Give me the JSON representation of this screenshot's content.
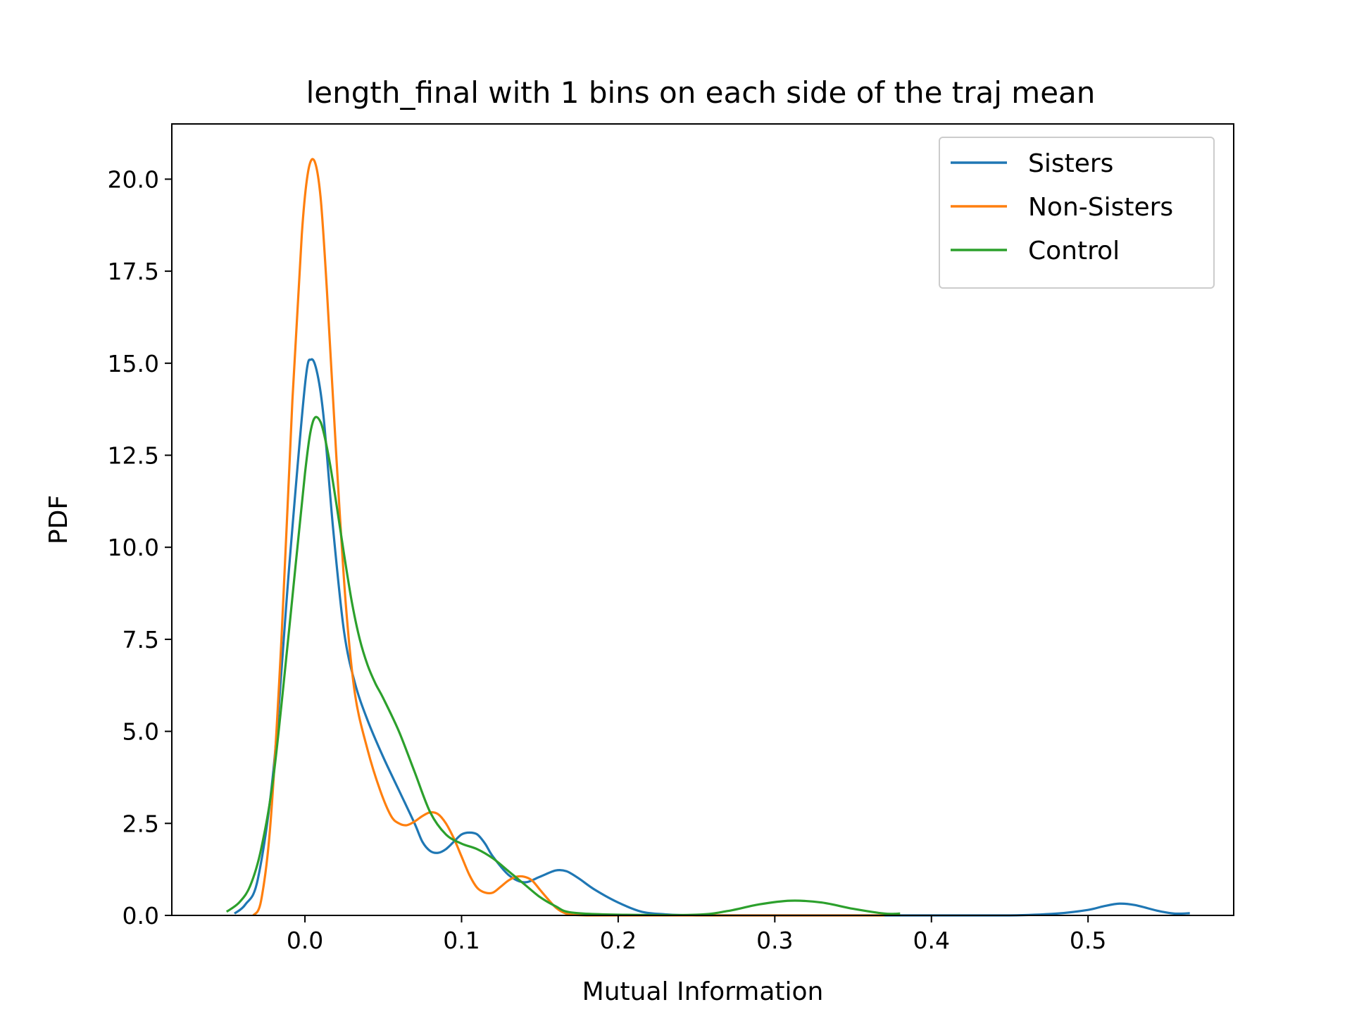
{
  "chart_data": {
    "type": "line",
    "title": "length_final with 1 bins on each side of the traj mean",
    "xlabel": "Mutual Information",
    "ylabel": "PDF",
    "xlim": [
      -0.085,
      0.593
    ],
    "ylim": [
      0,
      21.5
    ],
    "x_ticks": [
      0.0,
      0.1,
      0.2,
      0.3,
      0.4,
      0.5
    ],
    "x_tick_labels": [
      "0.0",
      "0.1",
      "0.2",
      "0.3",
      "0.4",
      "0.5"
    ],
    "y_ticks": [
      0,
      2.5,
      5,
      7.5,
      10,
      12.5,
      15,
      17.5,
      20
    ],
    "y_tick_labels": [
      "0.0",
      "2.5",
      "5.0",
      "7.5",
      "10.0",
      "12.5",
      "15.0",
      "17.5",
      "20.0"
    ],
    "grid": false,
    "legend": "top-right",
    "series": [
      {
        "name": "Sisters",
        "color": "#1f77b4",
        "x": [
          -0.045,
          -0.038,
          -0.03,
          -0.02,
          -0.01,
          0.0,
          0.004,
          0.008,
          0.012,
          0.018,
          0.025,
          0.032,
          0.04,
          0.05,
          0.06,
          0.07,
          0.075,
          0.08,
          0.085,
          0.09,
          0.095,
          0.1,
          0.105,
          0.11,
          0.115,
          0.12,
          0.13,
          0.14,
          0.15,
          0.16,
          0.167,
          0.175,
          0.185,
          0.2,
          0.215,
          0.23,
          0.25,
          0.3,
          0.35,
          0.4,
          0.45,
          0.48,
          0.5,
          0.51,
          0.52,
          0.53,
          0.545,
          0.555,
          0.565
        ],
        "values": [
          0.05,
          0.3,
          1.0,
          4.0,
          9.5,
          14.4,
          15.1,
          14.7,
          13.5,
          10.5,
          7.7,
          6.3,
          5.3,
          4.3,
          3.4,
          2.5,
          2.0,
          1.75,
          1.7,
          1.8,
          2.0,
          2.2,
          2.25,
          2.2,
          1.95,
          1.6,
          1.1,
          0.9,
          1.05,
          1.22,
          1.2,
          1.0,
          0.7,
          0.35,
          0.1,
          0.03,
          0.0,
          0.0,
          0.0,
          0.0,
          0.0,
          0.05,
          0.15,
          0.25,
          0.32,
          0.28,
          0.12,
          0.05,
          0.06
        ]
      },
      {
        "name": "Non-Sisters",
        "color": "#ff7f0e",
        "x": [
          -0.033,
          -0.028,
          -0.022,
          -0.015,
          -0.008,
          -0.002,
          0.002,
          0.006,
          0.01,
          0.014,
          0.02,
          0.026,
          0.032,
          0.04,
          0.048,
          0.055,
          0.06,
          0.065,
          0.07,
          0.075,
          0.08,
          0.085,
          0.09,
          0.095,
          0.1,
          0.105,
          0.11,
          0.115,
          0.12,
          0.125,
          0.13,
          0.135,
          0.14,
          0.145,
          0.15,
          0.155,
          0.16,
          0.165,
          0.17,
          0.18,
          0.2,
          0.22,
          0.3,
          0.37
        ],
        "values": [
          0.0,
          0.4,
          2.5,
          7.5,
          14.0,
          18.5,
          20.2,
          20.5,
          19.5,
          17.0,
          12.5,
          8.5,
          6.0,
          4.5,
          3.4,
          2.7,
          2.5,
          2.45,
          2.55,
          2.7,
          2.8,
          2.75,
          2.5,
          2.1,
          1.6,
          1.1,
          0.75,
          0.62,
          0.62,
          0.78,
          0.95,
          1.05,
          1.05,
          0.95,
          0.7,
          0.45,
          0.22,
          0.08,
          0.02,
          0.0,
          0.0,
          0.0,
          0.0,
          0.0
        ]
      },
      {
        "name": "Control",
        "color": "#2ca02c",
        "x": [
          -0.05,
          -0.042,
          -0.035,
          -0.028,
          -0.02,
          -0.01,
          0.0,
          0.005,
          0.01,
          0.015,
          0.02,
          0.025,
          0.03,
          0.035,
          0.04,
          0.045,
          0.05,
          0.06,
          0.07,
          0.08,
          0.09,
          0.1,
          0.11,
          0.12,
          0.13,
          0.14,
          0.15,
          0.16,
          0.17,
          0.2,
          0.25,
          0.27,
          0.29,
          0.31,
          0.33,
          0.35,
          0.37,
          0.38
        ],
        "values": [
          0.1,
          0.35,
          0.8,
          1.8,
          3.8,
          7.8,
          12.0,
          13.4,
          13.4,
          12.5,
          11.2,
          9.8,
          8.5,
          7.5,
          6.8,
          6.3,
          5.9,
          5.0,
          3.9,
          2.8,
          2.2,
          1.95,
          1.8,
          1.55,
          1.2,
          0.85,
          0.5,
          0.25,
          0.08,
          0.02,
          0.02,
          0.12,
          0.3,
          0.4,
          0.35,
          0.18,
          0.05,
          0.05
        ]
      }
    ]
  }
}
